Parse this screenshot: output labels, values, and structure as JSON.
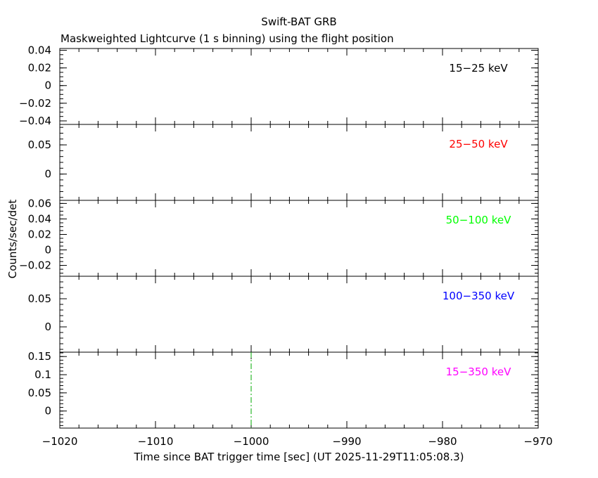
{
  "chart_data": {
    "type": "line",
    "title": "Swift-BAT GRB",
    "subtitle": "Maskweighted Lightcurve (1 s binning) using the flight position",
    "xlabel": "Time since BAT trigger time [sec] (UT 2025-11-29T11:05:08.3)",
    "ylabel": "Counts/sec/det",
    "xlim": [
      -1020,
      -970
    ],
    "x_ticks": [
      -1020,
      -1010,
      -1000,
      -990,
      -980,
      -970
    ],
    "x_tick_labels": [
      "−1020",
      "−1010",
      "−1000",
      "−990",
      "−980",
      "−970"
    ],
    "trigger_marker": {
      "x": -1000,
      "color": "#00aa00",
      "style": "dash-dot"
    },
    "panels": [
      {
        "band": "15−25 keV",
        "color": "#000000",
        "ylim": [
          -0.044,
          0.042
        ],
        "y_ticks": [
          -0.04,
          -0.02,
          0,
          0.02,
          0.04
        ],
        "y_tick_labels": [
          "−0.04",
          "−0.02",
          "0",
          "0.02",
          "0.04"
        ],
        "minor_step": 0.005
      },
      {
        "band": "25−50 keV",
        "color": "#ff0000",
        "ylim": [
          -0.045,
          0.085
        ],
        "y_ticks": [
          0,
          0.05
        ],
        "y_tick_labels": [
          "0",
          "0.05"
        ],
        "minor_step": 0.01
      },
      {
        "band": "50−100 keV",
        "color": "#00ff00",
        "ylim": [
          -0.034,
          0.064
        ],
        "y_ticks": [
          -0.02,
          0,
          0.02,
          0.04,
          0.06
        ],
        "y_tick_labels": [
          "−0.02",
          "0",
          "0.02",
          "0.04",
          "0.06"
        ],
        "minor_step": 0.005
      },
      {
        "band": "100−350 keV",
        "color": "#0000ff",
        "ylim": [
          -0.045,
          0.09
        ],
        "y_ticks": [
          0,
          0.05
        ],
        "y_tick_labels": [
          "0",
          "0.05"
        ],
        "minor_step": 0.01
      },
      {
        "band": "15−350 keV",
        "color": "#ff00ff",
        "ylim": [
          -0.047,
          0.162
        ],
        "y_ticks": [
          0,
          0.05,
          0.1,
          0.15
        ],
        "y_tick_labels": [
          "0",
          "0.05",
          "0.1",
          "0.15"
        ],
        "minor_step": 0.01
      }
    ]
  }
}
